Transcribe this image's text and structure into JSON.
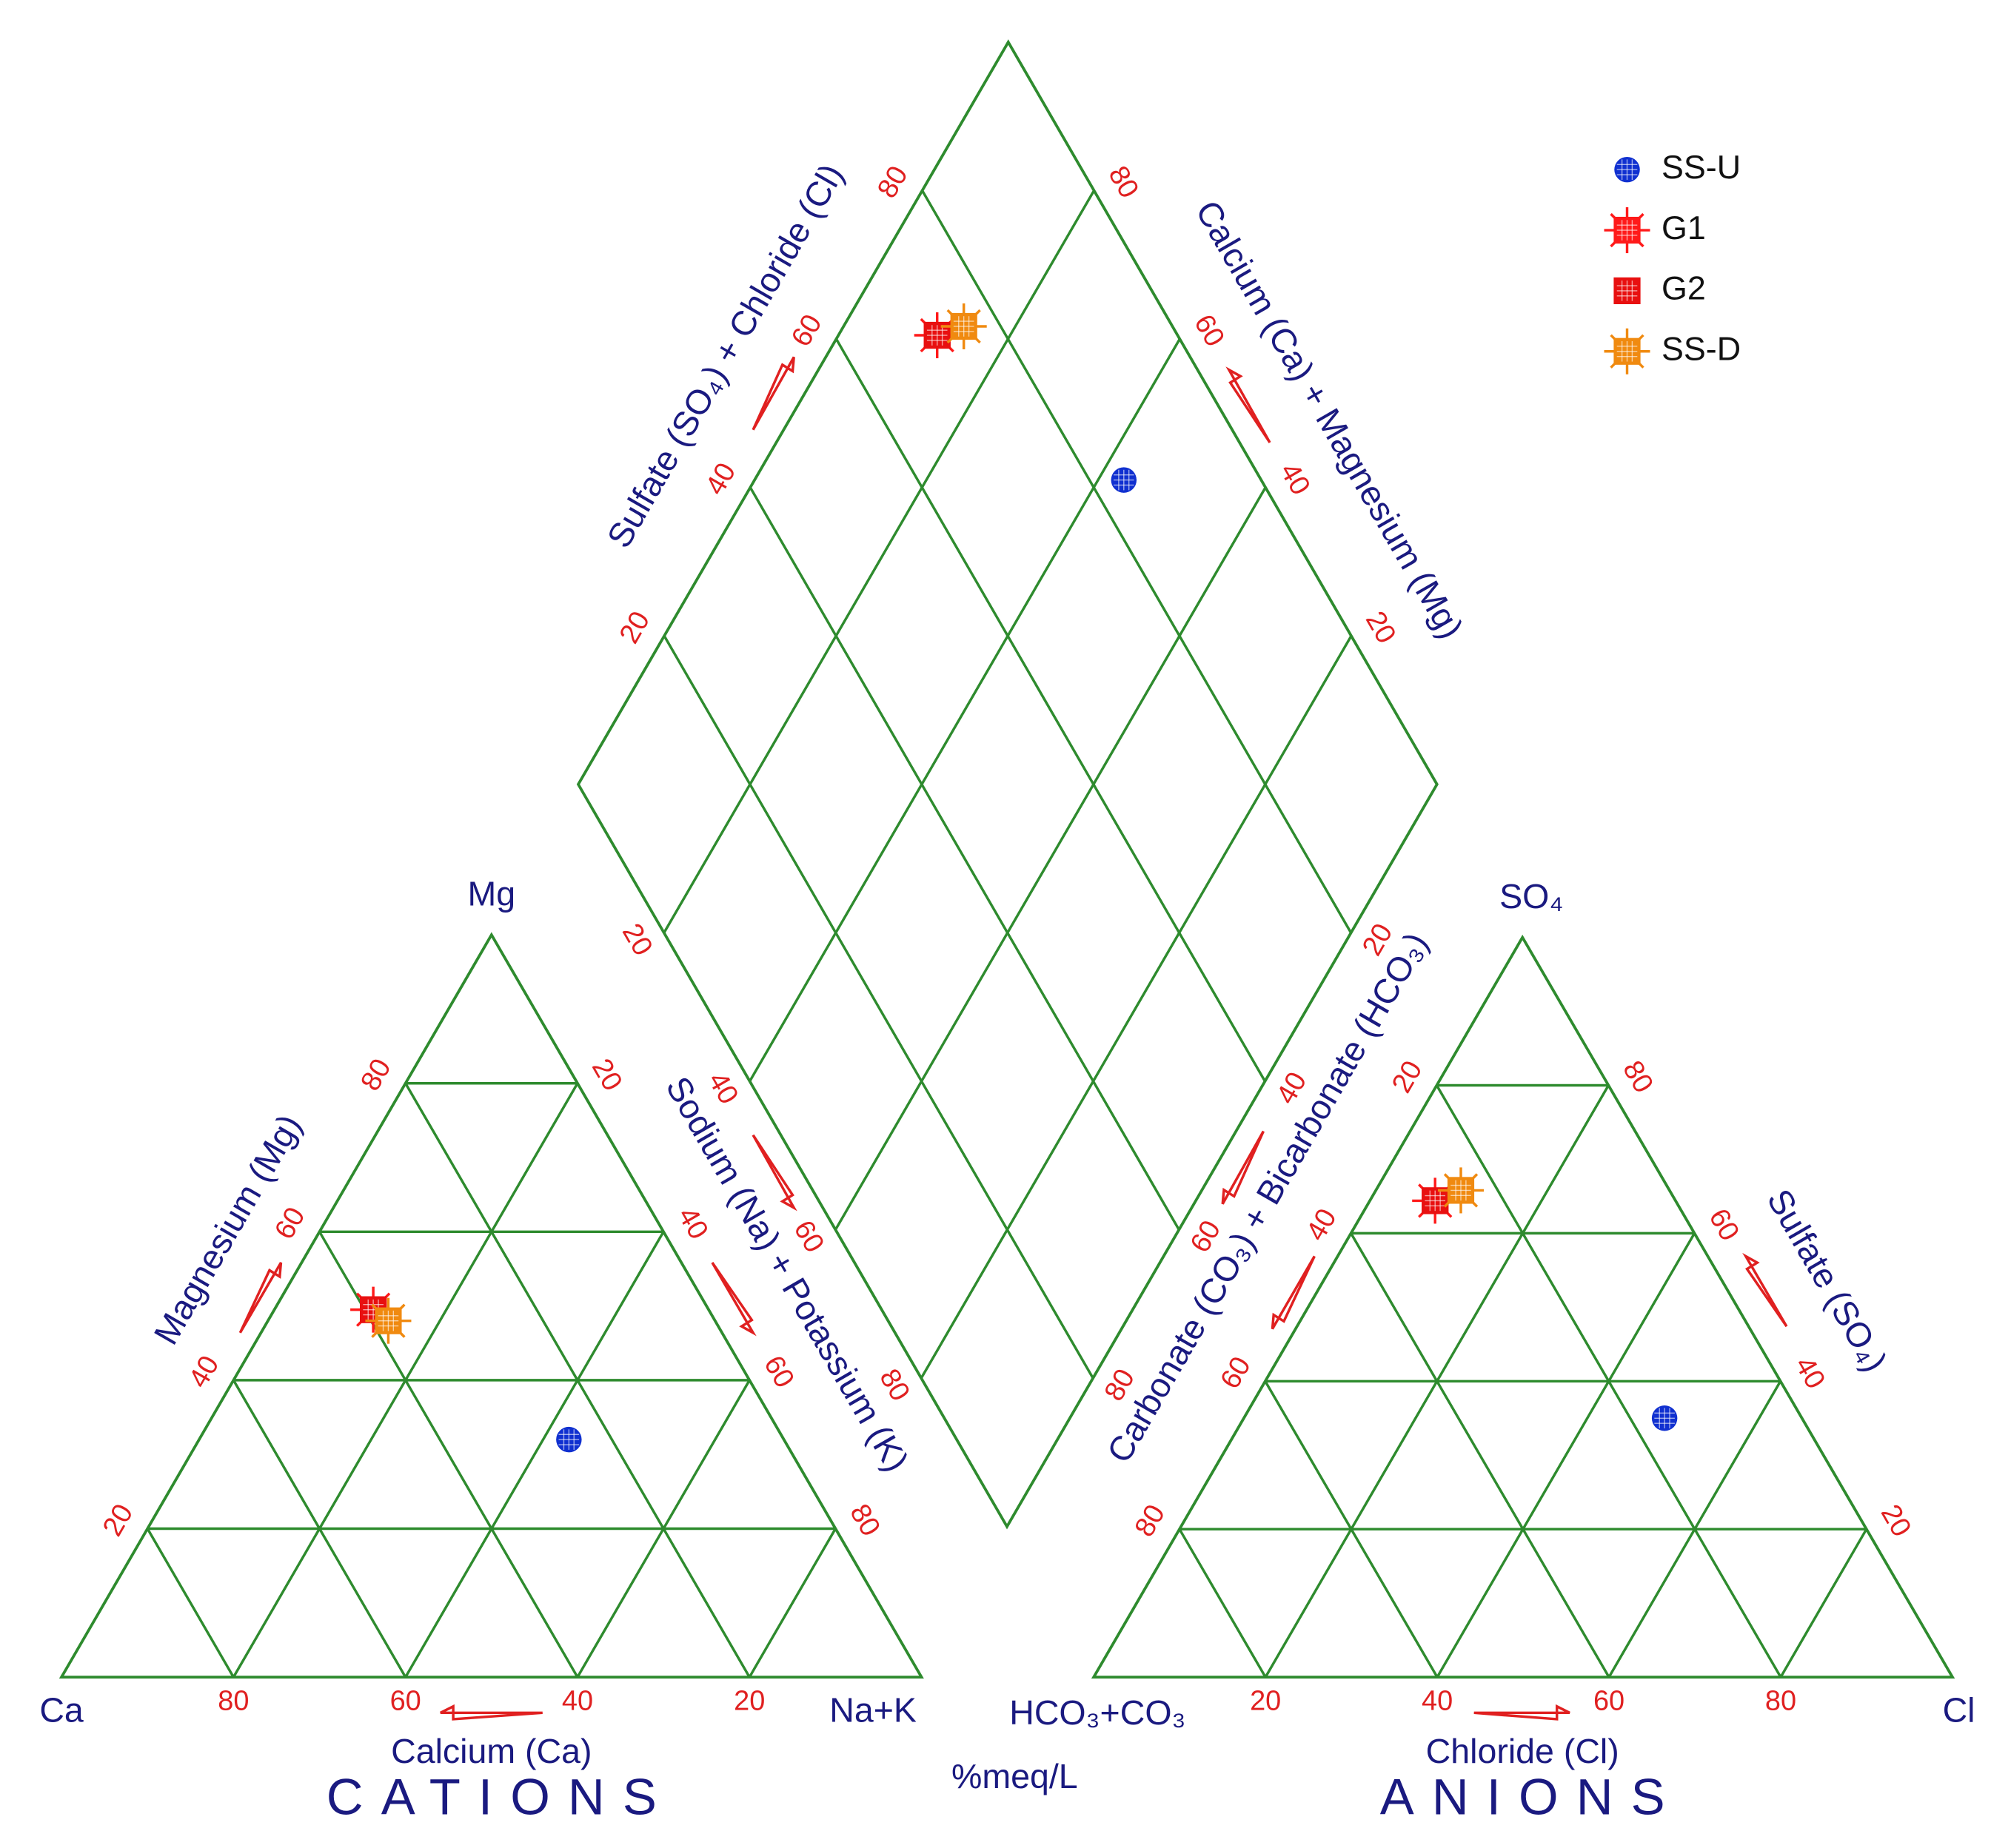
{
  "chart_data": {
    "type": "piper",
    "ticks": [
      20,
      40,
      60,
      80
    ],
    "grid_color": "#2e8b2e",
    "corner_labels": {
      "ca": "Ca",
      "mg": "Mg",
      "na_k": "Na+K",
      "hco3_co3": "HCO₃+CO₃",
      "so4": "SO₄",
      "cl": "Cl"
    },
    "axis_titles": {
      "calcium": "Calcium (Ca)",
      "magnesium": "Magnesium (Mg)",
      "sodium_potassium": "Sodium (Na) + Potassium (K)",
      "chloride": "Chloride (Cl)",
      "sulfate": "Sulfate (SO₄)",
      "carbonate_bicarbonate": "Carbonate (CO₃) + Bicarbonate (HCO₃)",
      "sulfate_chloride": "Sulfate (SO₄) + Chloride (Cl)",
      "calcium_magnesium": "Calcium (Ca) + Magnesium (Mg)"
    },
    "cations_label": "CATIONS",
    "anions_label": "ANIONS",
    "units": "%meq/L",
    "series": [
      {
        "name": "SS-U",
        "color": "#1030d0",
        "marker": "circle",
        "cations": [
          25,
          32,
          43
        ],
        "anions": [
          16,
          35,
          49
        ]
      },
      {
        "name": "G1",
        "color": "#ff1a1a",
        "marker": "star-square",
        "cations": [
          39,
          49.5,
          11.5
        ],
        "anions": [
          28,
          64.4,
          7.6
        ]
      },
      {
        "name": "G2",
        "color": "#e81010",
        "marker": "square",
        "cations": [
          39,
          49.5,
          11.5
        ],
        "anions": [
          28,
          64.4,
          7.6
        ]
      },
      {
        "name": "SS-D",
        "color": "#f08a10",
        "marker": "star-square",
        "cations": [
          38,
          48,
          14
        ],
        "anions": [
          24.3,
          65.8,
          9.9
        ]
      }
    ]
  }
}
